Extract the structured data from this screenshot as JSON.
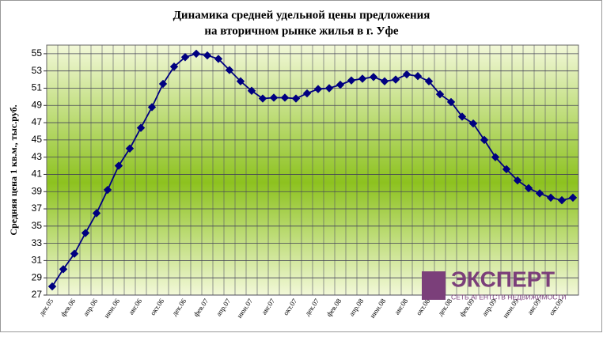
{
  "chart_data": {
    "type": "line",
    "title": "Динамика средней удельной цены предложения",
    "subtitle": "на вторичном рынке жилья в г. Уфе",
    "y_label": "Средняя цена 1 кв.м., тыс.руб.",
    "categories": [
      "дек.05",
      null,
      "фев.06",
      null,
      "апр.06",
      null,
      "июн.06",
      null,
      "авг.06",
      null,
      "окт.06",
      null,
      "дек.06",
      null,
      "фев.07",
      null,
      "апр.07",
      null,
      "июн.07",
      null,
      "авг.07",
      null,
      "окт.07",
      null,
      "дек.07",
      null,
      "фев.08",
      null,
      "апр.08",
      null,
      "июн.08",
      null,
      "авг.08",
      null,
      "окт.08",
      null,
      "дек.08",
      null,
      "фев.09",
      null,
      "апр.09",
      null,
      "июн.09",
      null,
      "авг.09",
      null,
      "окт.09",
      null
    ],
    "values": [
      28.0,
      30.0,
      31.8,
      34.2,
      36.5,
      39.2,
      42.0,
      44.0,
      46.4,
      48.8,
      51.5,
      53.5,
      54.6,
      55.0,
      54.8,
      54.4,
      53.1,
      51.8,
      50.7,
      49.8,
      49.9,
      49.9,
      49.8,
      50.4,
      50.9,
      51.0,
      51.4,
      51.9,
      52.1,
      52.3,
      51.8,
      52.0,
      52.6,
      52.4,
      51.8,
      50.3,
      49.4,
      47.7,
      46.9,
      45.0,
      43.0,
      41.6,
      40.3,
      39.4,
      38.8,
      38.3,
      38.0,
      38.3
    ],
    "color": "#000080",
    "ylim": [
      27,
      56
    ],
    "yticks": [
      27,
      29,
      31,
      33,
      35,
      37,
      39,
      41,
      43,
      45,
      47,
      49,
      51,
      53,
      55
    ],
    "grid": true,
    "annotations": [
      "ЭКСПЕРТ",
      "СЕТЬ АГЕНТСТВ НЕДВИЖИМОСТИ"
    ]
  }
}
